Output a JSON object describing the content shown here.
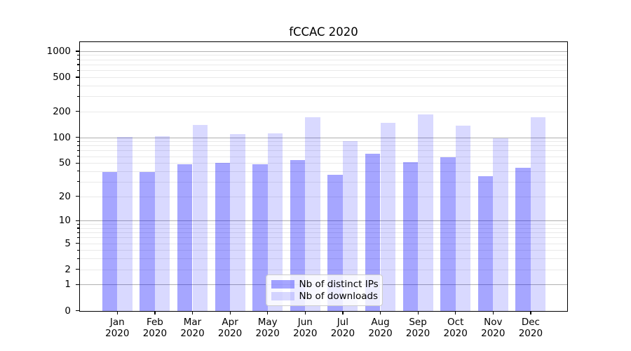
{
  "title": "fCCAC 2020",
  "chart_data": {
    "type": "bar",
    "title": "fCCAC 2020",
    "categories": [
      "Jan 2020",
      "Feb 2020",
      "Mar 2020",
      "Apr 2020",
      "May 2020",
      "Jun 2020",
      "Jul 2020",
      "Aug 2020",
      "Sep 2020",
      "Oct 2020",
      "Nov 2020",
      "Dec 2020"
    ],
    "series": [
      {
        "name": "Nb of distinct IPs",
        "color": "#0000ff",
        "opacity": 0.35,
        "values": [
          39,
          39,
          48,
          50,
          48,
          54,
          36,
          64,
          51,
          58,
          35,
          44
        ]
      },
      {
        "name": "Nb of downloads",
        "color": "#0000ff",
        "opacity": 0.15,
        "values": [
          101,
          104,
          139,
          109,
          112,
          171,
          90,
          148,
          185,
          136,
          98,
          171
        ]
      }
    ],
    "xlabel": "",
    "ylabel": "",
    "yscale": "log1p",
    "yticks": [
      0,
      1,
      2,
      5,
      10,
      20,
      50,
      100,
      200,
      500,
      1000
    ],
    "ylim": [
      0,
      1300
    ],
    "grid": "on",
    "legend_position": "lower center",
    "grid_major_color": "#b0b0b0",
    "grid_minor_color": "#e9e9e9"
  }
}
